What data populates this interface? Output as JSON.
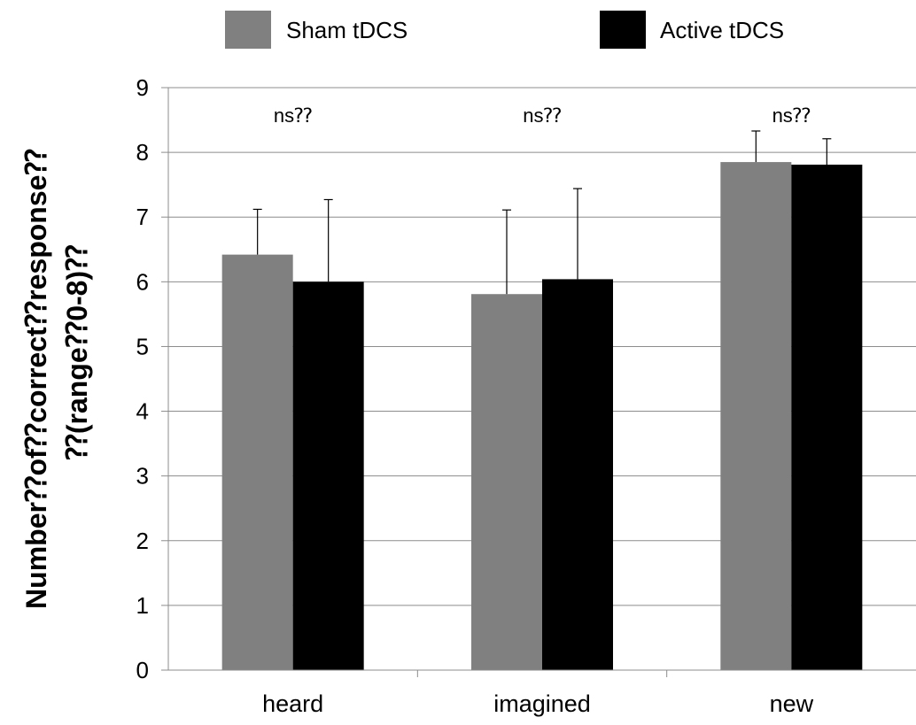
{
  "chart_data": {
    "type": "bar",
    "categories": [
      "heard",
      "imagined",
      "new"
    ],
    "series": [
      {
        "name": "Sham tDCS",
        "values": [
          6.42,
          5.81,
          7.85
        ],
        "errors": [
          0.7,
          1.3,
          0.48
        ],
        "color": "#808080"
      },
      {
        "name": "Active tDCS",
        "values": [
          6.0,
          6.04,
          7.81
        ],
        "errors": [
          1.27,
          1.4,
          0.4
        ],
        "color": "#000000"
      }
    ],
    "annotations": [
      "ns⁇",
      "ns⁇",
      "ns⁇"
    ],
    "ylabel_line1": "Number⁇of⁇correct⁇response⁇",
    "ylabel_line2": "⁇(range⁇0-8)⁇",
    "xlabel": "",
    "ylim": [
      0,
      9
    ],
    "yticks": [
      0,
      1,
      2,
      3,
      4,
      5,
      6,
      7,
      8,
      9
    ],
    "grid": true,
    "legend_position": "top"
  }
}
